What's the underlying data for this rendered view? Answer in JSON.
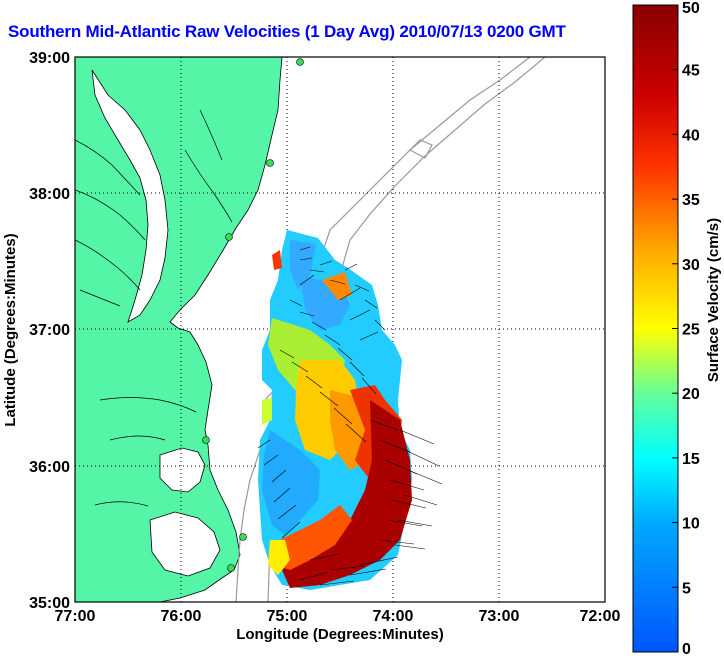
{
  "title": "Southern Mid-Atlantic Raw Velocities (1 Day Avg) 2010/07/13 0200 GMT",
  "x_axis": {
    "label": "Longitude (Degrees:Minutes)",
    "ticks": [
      "77:00",
      "76:00",
      "75:00",
      "74:00",
      "73:00",
      "72:00"
    ]
  },
  "y_axis": {
    "label": "Latitude (Degrees:Minutes)",
    "ticks": [
      "39:00",
      "38:00",
      "37:00",
      "36:00",
      "35:00"
    ]
  },
  "colorbar": {
    "label": "Surface Velocity (cm/s)",
    "ticks": [
      "50",
      "45",
      "40",
      "35",
      "30",
      "25",
      "20",
      "15",
      "10",
      "5",
      "0"
    ],
    "range": [
      0,
      50
    ]
  },
  "map_extent": {
    "lon_range_deg_west": [
      77,
      72
    ],
    "lat_range_deg_north": [
      35,
      39
    ],
    "grid": "dotted"
  },
  "colors": {
    "title": "#0000ff",
    "land": "#55f5a8",
    "bathymetry_contours": "#999999",
    "vectors": "#000000",
    "stations": "#33dd55"
  }
}
